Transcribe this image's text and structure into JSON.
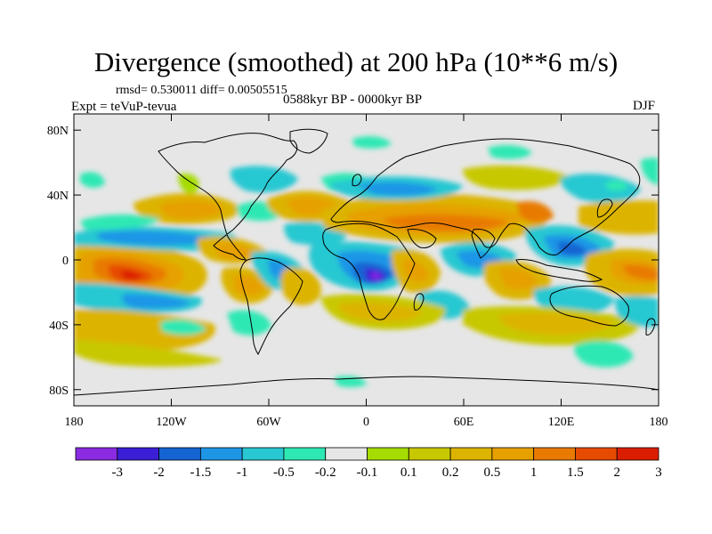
{
  "title": "Divergence (smoothed) at 200 hPa (10**6 m/s)",
  "stats": "rmsd= 0.530011 diff= 0.00505515",
  "experiment": "Expt = teVuP-tevua",
  "period": "0588kyr BP - 0000kyr BP",
  "season": "DJF",
  "map": {
    "lon_range": [
      -180,
      180
    ],
    "lat_range": [
      -90,
      90
    ],
    "x_ticks": [
      {
        "value": -180,
        "label": "180"
      },
      {
        "value": -120,
        "label": "120W"
      },
      {
        "value": -60,
        "label": "60W"
      },
      {
        "value": 0,
        "label": "0"
      },
      {
        "value": 60,
        "label": "60E"
      },
      {
        "value": 120,
        "label": "120E"
      },
      {
        "value": 180,
        "label": "180"
      }
    ],
    "y_ticks": [
      {
        "value": 80,
        "label": "80N"
      },
      {
        "value": 40,
        "label": "40N"
      },
      {
        "value": 0,
        "label": "0"
      },
      {
        "value": -40,
        "label": "40S"
      },
      {
        "value": -80,
        "label": "80S"
      }
    ],
    "background_color": "#e6e6e6",
    "coast_color": "#000000"
  },
  "colorbar": {
    "colors": [
      "#8a2be2",
      "#3a1fd6",
      "#1464d2",
      "#1e96e6",
      "#28c8d2",
      "#2ee8b4",
      "#e6e6e6",
      "#a6dc00",
      "#c8c800",
      "#dcb400",
      "#e6a000",
      "#e87a00",
      "#e64b00",
      "#dc1e00"
    ],
    "labels": [
      "-3",
      "-2",
      "-1.5",
      "-1",
      "-0.5",
      "-0.2",
      "-0.1",
      "0.1",
      "0.2",
      "0.5",
      "1",
      "1.5",
      "2",
      "3"
    ]
  }
}
